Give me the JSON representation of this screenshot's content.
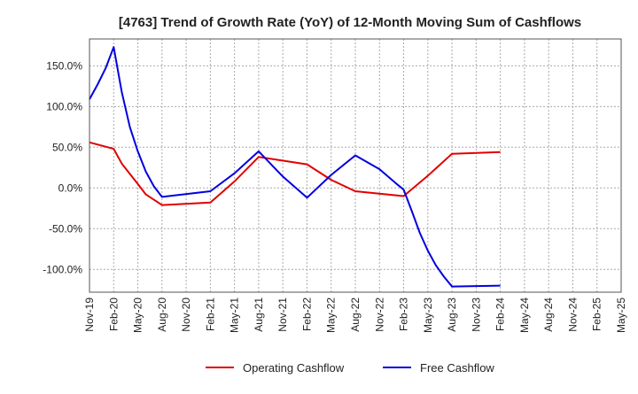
{
  "chart_data": {
    "type": "line",
    "title": "[4763]  Trend of Growth Rate (YoY) of 12-Month Moving Sum of Cashflows",
    "xlabel": "",
    "ylabel": "",
    "x_ticks": [
      "Nov-19",
      "Feb-20",
      "May-20",
      "Aug-20",
      "Nov-20",
      "Feb-21",
      "May-21",
      "Aug-21",
      "Nov-21",
      "Feb-22",
      "May-22",
      "Aug-22",
      "Nov-22",
      "Feb-23",
      "May-23",
      "Aug-23",
      "Nov-23",
      "Feb-24",
      "May-24",
      "Aug-24",
      "Nov-24",
      "Feb-25",
      "May-25"
    ],
    "y_ticks": [
      150,
      100,
      50,
      0,
      -50,
      -100
    ],
    "y_tick_labels": [
      "150.0%",
      "100.0%",
      "50.0%",
      "0.0%",
      "-50.0%",
      "-100.0%"
    ],
    "ylim": [
      -128,
      183
    ],
    "grid": true,
    "legend_position": "bottom",
    "series": [
      {
        "name": "Operating Cashflow",
        "color": "#e00000",
        "x": [
          "2019-11",
          "2020-02",
          "2020-03",
          "2020-05",
          "2020-06",
          "2020-08",
          "2021-02",
          "2021-05",
          "2021-08",
          "2022-02",
          "2022-05",
          "2022-08",
          "2023-02",
          "2023-05",
          "2023-08",
          "2024-02"
        ],
        "y": [
          56,
          48,
          30,
          5,
          -8,
          -21,
          -18,
          8,
          38,
          29,
          10,
          -4,
          -10,
          15,
          42,
          44
        ]
      },
      {
        "name": "Free Cashflow",
        "color": "#0000e0",
        "x": [
          "2019-11",
          "2019-12",
          "2020-01",
          "2020-02",
          "2020-03",
          "2020-04",
          "2020-05",
          "2020-06",
          "2020-07",
          "2020-08",
          "2021-02",
          "2021-05",
          "2021-08",
          "2021-11",
          "2022-02",
          "2022-05",
          "2022-08",
          "2022-11",
          "2023-01",
          "2023-02",
          "2023-03",
          "2023-04",
          "2023-05",
          "2023-06",
          "2023-07",
          "2023-08",
          "2024-02"
        ],
        "y": [
          109,
          127,
          147,
          173,
          118,
          75,
          45,
          20,
          2,
          -11,
          -4,
          18,
          45,
          14,
          -12,
          16,
          40,
          23,
          6,
          -2,
          -28,
          -55,
          -77,
          -95,
          -109,
          -121,
          -120
        ]
      }
    ]
  }
}
